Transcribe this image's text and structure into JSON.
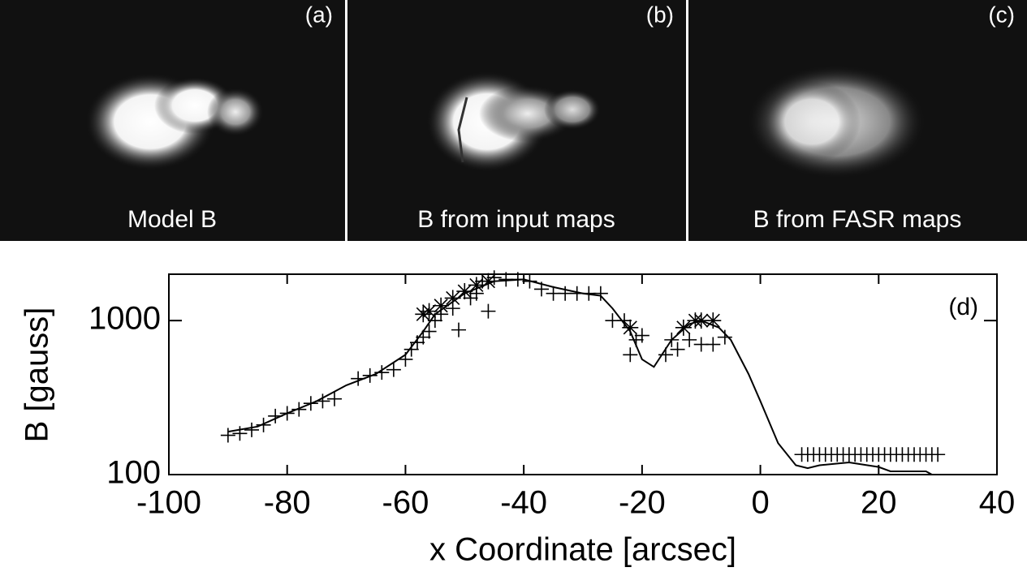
{
  "panels": [
    {
      "tag": "(a)",
      "caption": "Model B"
    },
    {
      "tag": "(b)",
      "caption": "B from input maps"
    },
    {
      "tag": "(c)",
      "caption": "B from FASR maps"
    }
  ],
  "chart_data": {
    "type": "line",
    "annotation": "(d)",
    "x_label": "x Coordinate [arcsec]",
    "y_label": "B [gauss]",
    "xlim": [
      -100,
      40
    ],
    "xticks": [
      -100,
      -80,
      -60,
      -40,
      -20,
      0,
      20,
      40
    ],
    "ylim": [
      100,
      2000
    ],
    "yticks": [
      100,
      1000
    ],
    "log_y": true,
    "series": [
      {
        "marker": "none",
        "color": "#000000",
        "x": [
          -90,
          -85,
          -80,
          -75,
          -70,
          -65,
          -60,
          -57,
          -55,
          -50,
          -45,
          -40,
          -35,
          -30,
          -27,
          -25,
          -22,
          -20,
          -18,
          -15,
          -12,
          -10,
          -7,
          -5,
          -2,
          0,
          3,
          6,
          8,
          10,
          15,
          20,
          22,
          25,
          28,
          29
        ],
        "values": [
          190,
          205,
          250,
          300,
          380,
          450,
          600,
          850,
          1100,
          1500,
          1800,
          1850,
          1650,
          1500,
          1450,
          1200,
          850,
          560,
          500,
          750,
          950,
          1000,
          900,
          750,
          450,
          300,
          160,
          115,
          110,
          115,
          120,
          112,
          105,
          105,
          105,
          100
        ]
      },
      {
        "marker": "+",
        "color": "#000000",
        "x": [
          -90,
          -88,
          -86,
          -84,
          -82,
          -80,
          -78,
          -76,
          -74,
          -72,
          -68,
          -66,
          -64,
          -62,
          -60,
          -59,
          -58,
          -57,
          -56,
          -55,
          -54,
          -52,
          -51,
          -49,
          -48,
          -47,
          -46,
          -45,
          -43,
          -41,
          -39,
          -37,
          -35,
          -33,
          -31,
          -29,
          -27,
          -25,
          -23,
          -22,
          -21,
          -20,
          -16,
          -15,
          -14,
          -12,
          -10,
          -8,
          -6,
          7,
          8,
          9,
          10,
          11,
          12,
          13,
          14,
          15,
          16,
          17,
          18,
          19,
          20,
          21,
          22,
          23,
          24,
          25,
          26,
          27,
          28,
          29,
          30
        ],
        "values": [
          180,
          185,
          195,
          210,
          240,
          250,
          265,
          290,
          300,
          310,
          420,
          440,
          460,
          480,
          560,
          650,
          720,
          780,
          850,
          1000,
          1100,
          1200,
          870,
          1400,
          1500,
          1800,
          1150,
          1900,
          1850,
          1850,
          1800,
          1600,
          1500,
          1500,
          1500,
          1500,
          1500,
          1000,
          1000,
          600,
          750,
          800,
          600,
          750,
          650,
          750,
          700,
          700,
          780,
          135,
          135,
          135,
          135,
          135,
          135,
          135,
          135,
          135,
          135,
          135,
          135,
          135,
          135,
          135,
          135,
          135,
          135,
          135,
          135,
          135,
          135,
          135,
          135
        ]
      },
      {
        "marker": "*",
        "color": "#000000",
        "x": [
          -57,
          -56,
          -54,
          -52,
          -50,
          -48,
          -46,
          -22,
          -13,
          -11,
          -10,
          -8
        ],
        "values": [
          1100,
          1150,
          1250,
          1400,
          1550,
          1700,
          1800,
          900,
          900,
          1000,
          1000,
          1000
        ]
      }
    ]
  }
}
